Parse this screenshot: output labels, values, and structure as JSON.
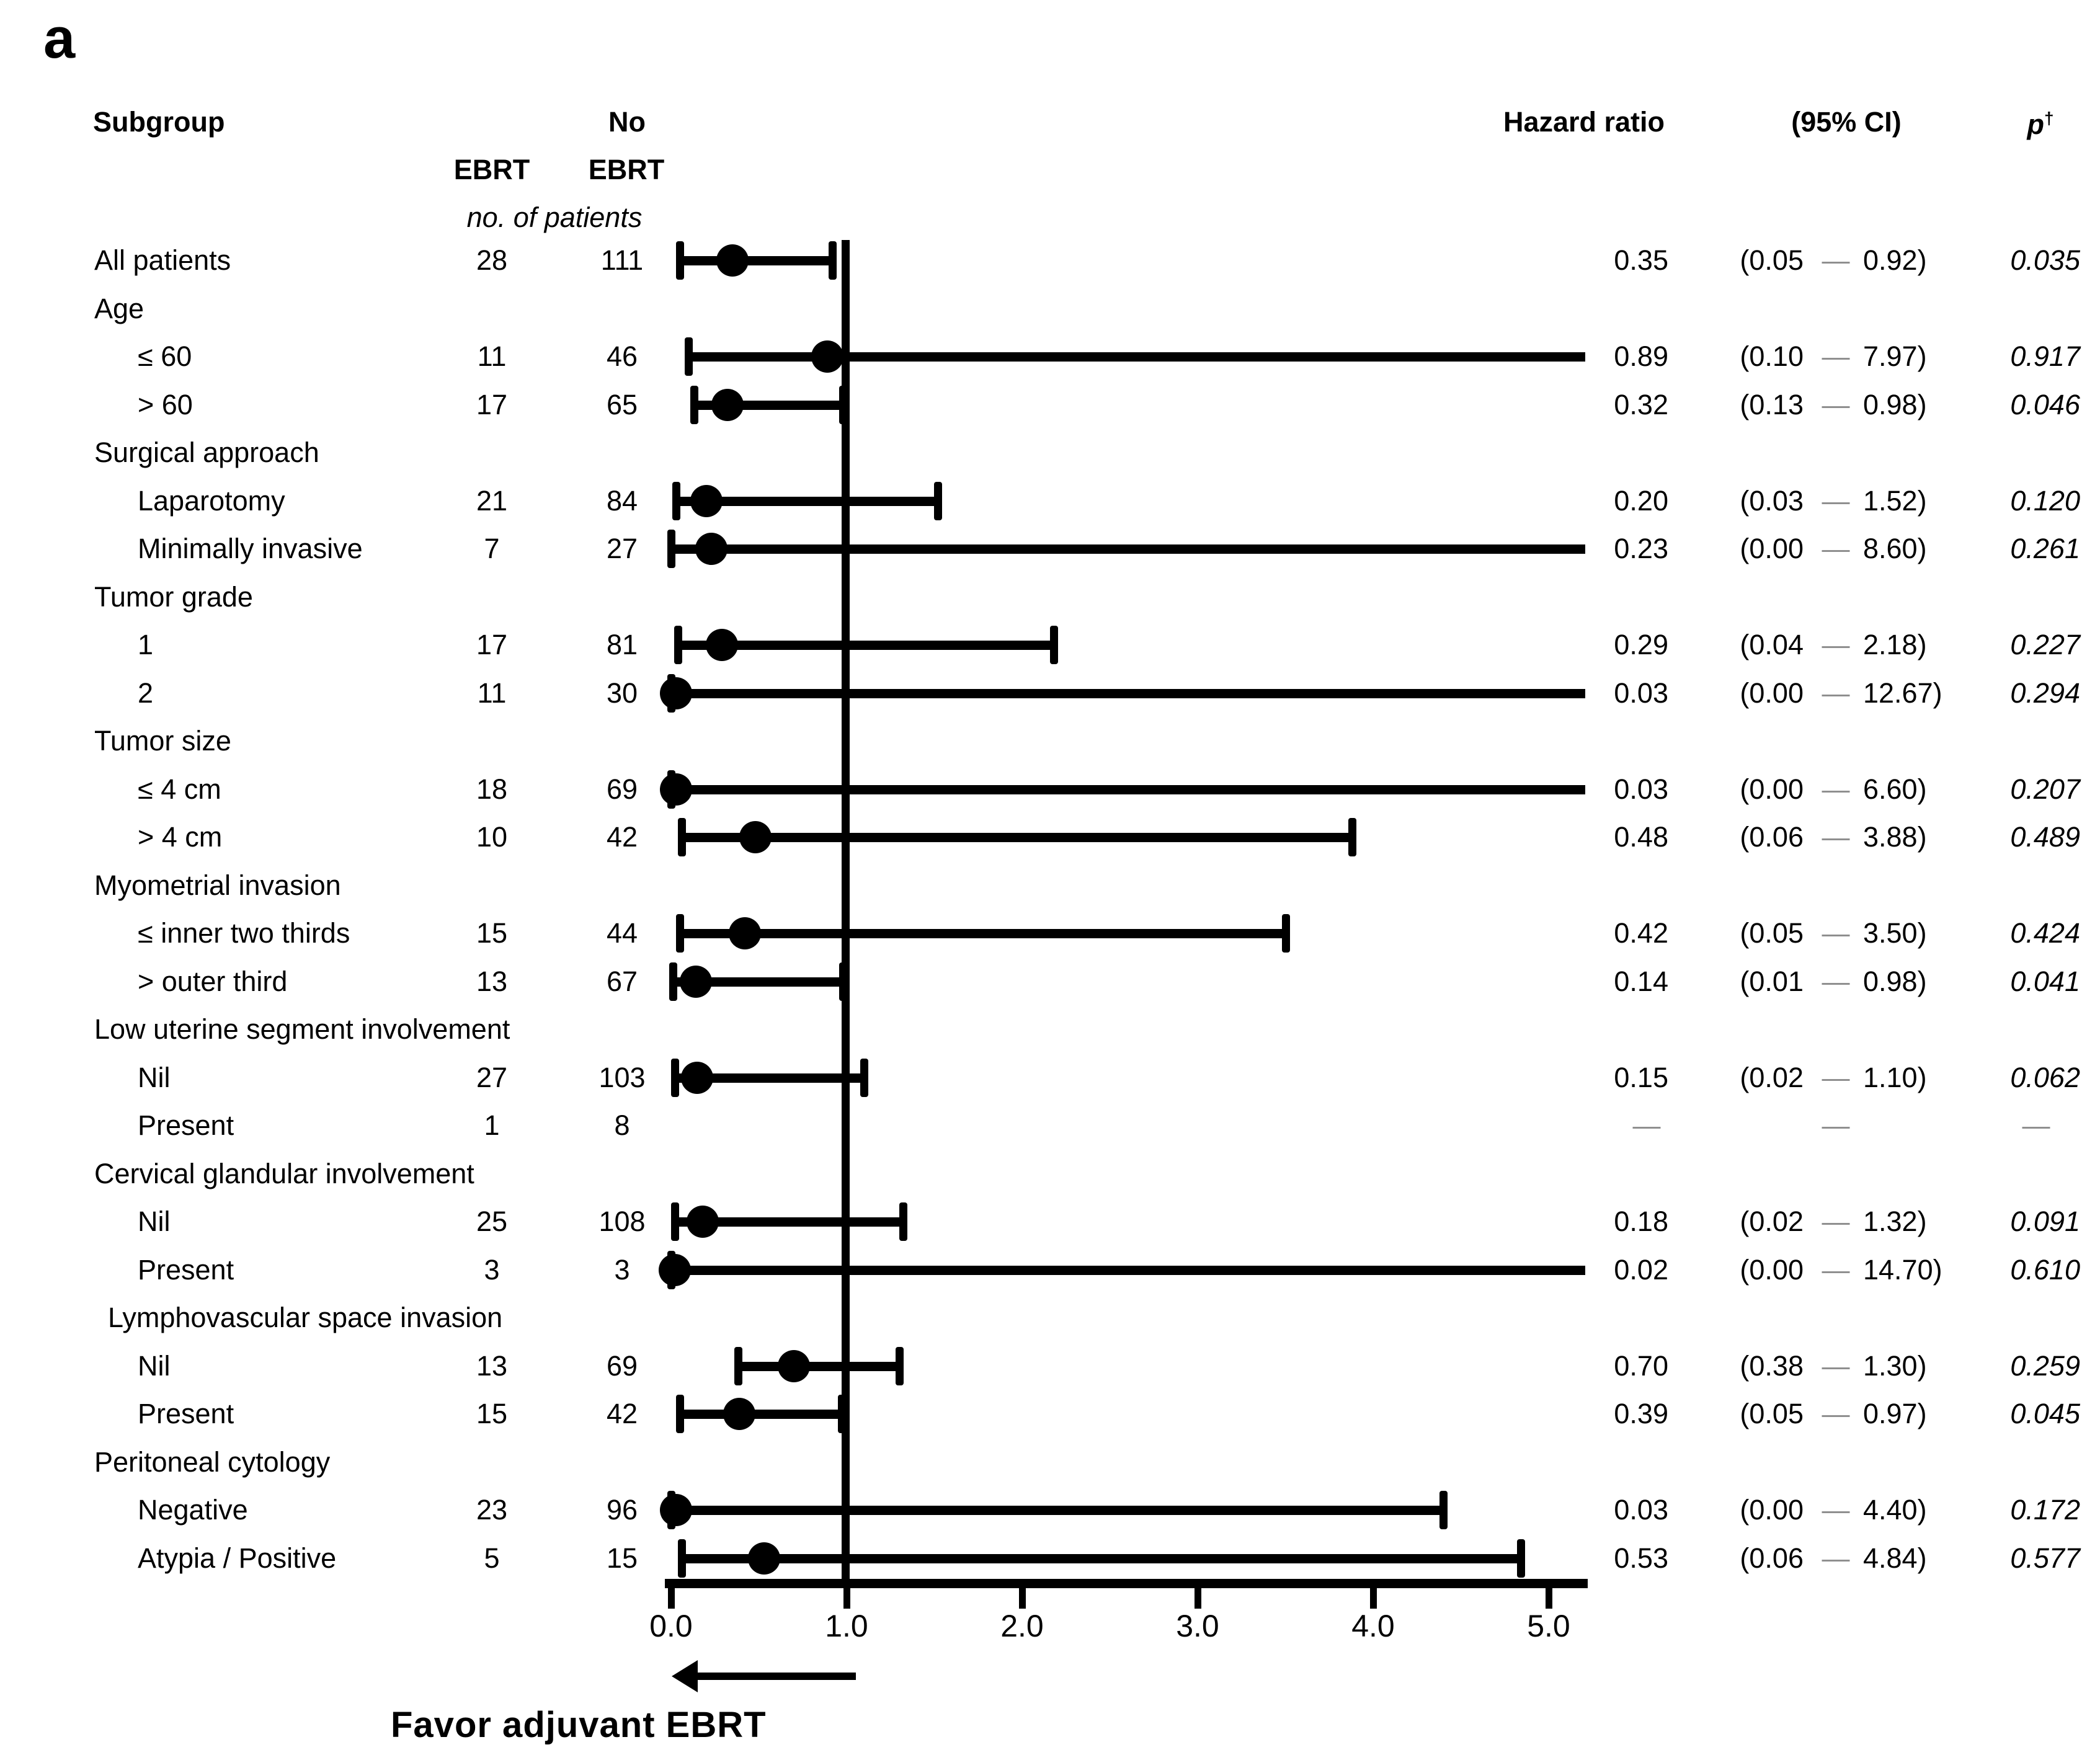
{
  "panel_label": "a",
  "colors": {
    "ink": "#000000",
    "muted_dash": "#8f8f8f"
  },
  "header": {
    "subgroup": "Subgroup",
    "no": "No",
    "ebrt_left": "EBRT",
    "ebrt_right": "EBRT",
    "unit_note": "no. of patients",
    "hazard_ratio": "Hazard ratio",
    "ci": "(95% CI)",
    "p": "p",
    "p_sup": "†"
  },
  "ci_dash": "—",
  "na_dash": "—",
  "axis": {
    "tick_labels": [
      "0.0",
      "1.0",
      "2.0",
      "3.0",
      "4.0",
      "5.0"
    ],
    "tick_values": [
      0,
      1,
      2,
      3,
      4,
      5
    ],
    "reference_value": 1.0
  },
  "footer": {
    "favor_label": "Favor adjuvant EBRT"
  },
  "rows": [
    {
      "type": "all",
      "label": "All patients",
      "ebrt": "28",
      "no_ebrt": "111",
      "hr": "0.35",
      "lo": "0.05",
      "hi": "0.92",
      "p": "0.035"
    },
    {
      "type": "group",
      "label": "Age"
    },
    {
      "type": "item",
      "label": "≤ 60",
      "ebrt": "11",
      "no_ebrt": "46",
      "hr": "0.89",
      "lo": "0.10",
      "hi": "7.97",
      "p": "0.917"
    },
    {
      "type": "item",
      "label": "> 60",
      "ebrt": "17",
      "no_ebrt": "65",
      "hr": "0.32",
      "lo": "0.13",
      "hi": "0.98",
      "p": "0.046"
    },
    {
      "type": "group",
      "label": "Surgical approach"
    },
    {
      "type": "item",
      "label": "Laparotomy",
      "ebrt": "21",
      "no_ebrt": "84",
      "hr": "0.20",
      "lo": "0.03",
      "hi": "1.52",
      "p": "0.120"
    },
    {
      "type": "item",
      "label": "Minimally invasive",
      "ebrt": "7",
      "no_ebrt": "27",
      "hr": "0.23",
      "lo": "0.00",
      "hi": "8.60",
      "p": "0.261"
    },
    {
      "type": "group",
      "label": "Tumor grade"
    },
    {
      "type": "item",
      "label": "1",
      "ebrt": "17",
      "no_ebrt": "81",
      "hr": "0.29",
      "lo": "0.04",
      "hi": "2.18",
      "p": "0.227"
    },
    {
      "type": "item",
      "label": "2",
      "ebrt": "11",
      "no_ebrt": "30",
      "hr": "0.03",
      "lo": "0.00",
      "hi": "12.67",
      "p": "0.294"
    },
    {
      "type": "group",
      "label": "Tumor size"
    },
    {
      "type": "item",
      "label": "≤ 4 cm",
      "ebrt": "18",
      "no_ebrt": "69",
      "hr": "0.03",
      "lo": "0.00",
      "hi": "6.60",
      "p": "0.207"
    },
    {
      "type": "item",
      "label": "> 4 cm",
      "ebrt": "10",
      "no_ebrt": "42",
      "hr": "0.48",
      "lo": "0.06",
      "hi": "3.88",
      "p": "0.489"
    },
    {
      "type": "group",
      "label": "Myometrial invasion"
    },
    {
      "type": "item",
      "label": "≤ inner two thirds",
      "ebrt": "15",
      "no_ebrt": "44",
      "hr": "0.42",
      "lo": "0.05",
      "hi": "3.50",
      "p": "0.424"
    },
    {
      "type": "item",
      "label": "> outer third",
      "ebrt": "13",
      "no_ebrt": "67",
      "hr": "0.14",
      "lo": "0.01",
      "hi": "0.98",
      "p": "0.041"
    },
    {
      "type": "group",
      "label": "Low uterine segment involvement"
    },
    {
      "type": "item",
      "label": "Nil",
      "ebrt": "27",
      "no_ebrt": "103",
      "hr": "0.15",
      "lo": "0.02",
      "hi": "1.10",
      "p": "0.062"
    },
    {
      "type": "item",
      "label": "Present",
      "ebrt": "1",
      "no_ebrt": "8",
      "na": true
    },
    {
      "type": "group",
      "label": "Cervical glandular involvement"
    },
    {
      "type": "item",
      "label": "Nil",
      "ebrt": "25",
      "no_ebrt": "108",
      "hr": "0.18",
      "lo": "0.02",
      "hi": "1.32",
      "p": "0.091"
    },
    {
      "type": "item",
      "label": "Present",
      "ebrt": "3",
      "no_ebrt": "3",
      "hr": "0.02",
      "lo": "0.00",
      "hi": "14.70",
      "p": "0.610"
    },
    {
      "type": "group2",
      "label": "Lymphovascular space invasion"
    },
    {
      "type": "item",
      "label": "Nil",
      "ebrt": "13",
      "no_ebrt": "69",
      "hr": "0.70",
      "lo": "0.38",
      "hi": "1.30",
      "p": "0.259"
    },
    {
      "type": "item",
      "label": "Present",
      "ebrt": "15",
      "no_ebrt": "42",
      "hr": "0.39",
      "lo": "0.05",
      "hi": "0.97",
      "p": "0.045"
    },
    {
      "type": "group",
      "label": "Peritoneal cytology"
    },
    {
      "type": "item",
      "label": "Negative",
      "ebrt": "23",
      "no_ebrt": "96",
      "hr": "0.03",
      "lo": "0.00",
      "hi": "4.40",
      "p": "0.172"
    },
    {
      "type": "item",
      "label": "Atypia / Positive",
      "ebrt": "5",
      "no_ebrt": "15",
      "hr": "0.53",
      "lo": "0.06",
      "hi": "4.84",
      "p": "0.577"
    }
  ],
  "chart_data": {
    "type": "scatter",
    "subtype": "forest-plot",
    "title": "",
    "xlabel": "Hazard ratio",
    "xlim": [
      0,
      5.2
    ],
    "x_ticks": [
      0.0,
      1.0,
      2.0,
      3.0,
      4.0,
      5.0
    ],
    "reference_line_x": 1.0,
    "grid": false,
    "direction_annotation": "Favor adjuvant EBRT (arrow pointing toward 0)",
    "points": [
      {
        "group": "",
        "subgroup": "All patients",
        "ebrt_n": 28,
        "no_ebrt_n": 111,
        "hr": 0.35,
        "ci95": [
          0.05,
          0.92
        ],
        "p": 0.035
      },
      {
        "group": "Age",
        "subgroup": "≤ 60",
        "ebrt_n": 11,
        "no_ebrt_n": 46,
        "hr": 0.89,
        "ci95": [
          0.1,
          7.97
        ],
        "p": 0.917
      },
      {
        "group": "Age",
        "subgroup": "> 60",
        "ebrt_n": 17,
        "no_ebrt_n": 65,
        "hr": 0.32,
        "ci95": [
          0.13,
          0.98
        ],
        "p": 0.046
      },
      {
        "group": "Surgical approach",
        "subgroup": "Laparotomy",
        "ebrt_n": 21,
        "no_ebrt_n": 84,
        "hr": 0.2,
        "ci95": [
          0.03,
          1.52
        ],
        "p": 0.12
      },
      {
        "group": "Surgical approach",
        "subgroup": "Minimally invasive",
        "ebrt_n": 7,
        "no_ebrt_n": 27,
        "hr": 0.23,
        "ci95": [
          0.0,
          8.6
        ],
        "p": 0.261
      },
      {
        "group": "Tumor grade",
        "subgroup": "1",
        "ebrt_n": 17,
        "no_ebrt_n": 81,
        "hr": 0.29,
        "ci95": [
          0.04,
          2.18
        ],
        "p": 0.227
      },
      {
        "group": "Tumor grade",
        "subgroup": "2",
        "ebrt_n": 11,
        "no_ebrt_n": 30,
        "hr": 0.03,
        "ci95": [
          0.0,
          12.67
        ],
        "p": 0.294
      },
      {
        "group": "Tumor size",
        "subgroup": "≤ 4 cm",
        "ebrt_n": 18,
        "no_ebrt_n": 69,
        "hr": 0.03,
        "ci95": [
          0.0,
          6.6
        ],
        "p": 0.207
      },
      {
        "group": "Tumor size",
        "subgroup": "> 4 cm",
        "ebrt_n": 10,
        "no_ebrt_n": 42,
        "hr": 0.48,
        "ci95": [
          0.06,
          3.88
        ],
        "p": 0.489
      },
      {
        "group": "Myometrial invasion",
        "subgroup": "≤ inner two thirds",
        "ebrt_n": 15,
        "no_ebrt_n": 44,
        "hr": 0.42,
        "ci95": [
          0.05,
          3.5
        ],
        "p": 0.424
      },
      {
        "group": "Myometrial invasion",
        "subgroup": "> outer third",
        "ebrt_n": 13,
        "no_ebrt_n": 67,
        "hr": 0.14,
        "ci95": [
          0.01,
          0.98
        ],
        "p": 0.041
      },
      {
        "group": "Low uterine segment involvement",
        "subgroup": "Nil",
        "ebrt_n": 27,
        "no_ebrt_n": 103,
        "hr": 0.15,
        "ci95": [
          0.02,
          1.1
        ],
        "p": 0.062
      },
      {
        "group": "Low uterine segment involvement",
        "subgroup": "Present",
        "ebrt_n": 1,
        "no_ebrt_n": 8,
        "hr": null,
        "ci95": null,
        "p": null
      },
      {
        "group": "Cervical glandular involvement",
        "subgroup": "Nil",
        "ebrt_n": 25,
        "no_ebrt_n": 108,
        "hr": 0.18,
        "ci95": [
          0.02,
          1.32
        ],
        "p": 0.091
      },
      {
        "group": "Cervical glandular involvement",
        "subgroup": "Present",
        "ebrt_n": 3,
        "no_ebrt_n": 3,
        "hr": 0.02,
        "ci95": [
          0.0,
          14.7
        ],
        "p": 0.61
      },
      {
        "group": "Lymphovascular space invasion",
        "subgroup": "Nil",
        "ebrt_n": 13,
        "no_ebrt_n": 69,
        "hr": 0.7,
        "ci95": [
          0.38,
          1.3
        ],
        "p": 0.259
      },
      {
        "group": "Lymphovascular space invasion",
        "subgroup": "Present",
        "ebrt_n": 15,
        "no_ebrt_n": 42,
        "hr": 0.39,
        "ci95": [
          0.05,
          0.97
        ],
        "p": 0.045
      },
      {
        "group": "Peritoneal cytology",
        "subgroup": "Negative",
        "ebrt_n": 23,
        "no_ebrt_n": 96,
        "hr": 0.03,
        "ci95": [
          0.0,
          4.4
        ],
        "p": 0.172
      },
      {
        "group": "Peritoneal cytology",
        "subgroup": "Atypia / Positive",
        "ebrt_n": 5,
        "no_ebrt_n": 15,
        "hr": 0.53,
        "ci95": [
          0.06,
          4.84
        ],
        "p": 0.577
      }
    ]
  }
}
